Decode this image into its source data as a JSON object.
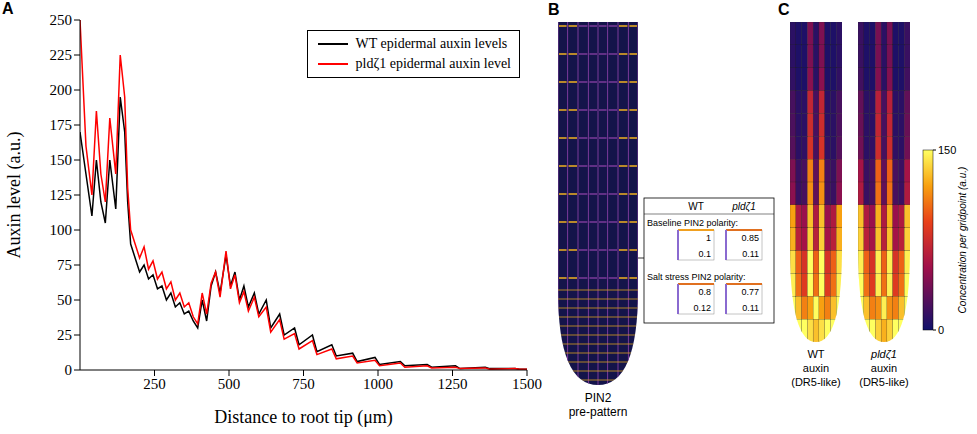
{
  "panel_labels": [
    "A",
    "B",
    "C"
  ],
  "chart_data": {
    "type": "line",
    "xlabel": "Distance to root tip (μm)",
    "ylabel": "Auxin level (a.u.)",
    "x": [
      0,
      20,
      40,
      55,
      70,
      85,
      100,
      120,
      135,
      150,
      160,
      170,
      185,
      200,
      215,
      230,
      245,
      260,
      275,
      290,
      305,
      320,
      335,
      350,
      365,
      380,
      395,
      410,
      425,
      440,
      455,
      470,
      490,
      505,
      520,
      535,
      550,
      565,
      585,
      600,
      625,
      640,
      670,
      685,
      720,
      735,
      780,
      795,
      845,
      860,
      915,
      930,
      990,
      1005,
      1075,
      1090,
      1165,
      1180,
      1260,
      1275,
      1360,
      1375,
      1460,
      1475,
      1500
    ],
    "series": [
      {
        "name": "WT epidermal auxin levels",
        "color": "#000000",
        "values": [
          170,
          140,
          110,
          150,
          120,
          105,
          150,
          115,
          195,
          170,
          120,
          90,
          80,
          70,
          75,
          65,
          68,
          58,
          60,
          50,
          55,
          45,
          48,
          40,
          42,
          35,
          30,
          50,
          35,
          60,
          70,
          55,
          82,
          60,
          70,
          50,
          60,
          45,
          55,
          40,
          50,
          30,
          40,
          25,
          30,
          18,
          25,
          13,
          18,
          10,
          12,
          6,
          9,
          4,
          6,
          3,
          4,
          2,
          3,
          1,
          2,
          1,
          1,
          0.5,
          0.5
        ]
      },
      {
        "name": "pldζ1 epidermal auxin level",
        "color": "#ff0000",
        "values": [
          250,
          160,
          125,
          185,
          140,
          120,
          180,
          140,
          225,
          195,
          130,
          100,
          90,
          80,
          88,
          72,
          78,
          65,
          70,
          58,
          63,
          50,
          55,
          45,
          48,
          38,
          33,
          55,
          40,
          62,
          70,
          52,
          85,
          58,
          68,
          48,
          56,
          42,
          52,
          38,
          45,
          27,
          36,
          22,
          26,
          15,
          21,
          11,
          15,
          8,
          10,
          5,
          7,
          3,
          5,
          2,
          3,
          1.5,
          2,
          1,
          1.5,
          0.5,
          1,
          0.5,
          0.5
        ]
      }
    ],
    "xlim": [
      0,
      1500
    ],
    "xticks": [
      250,
      500,
      750,
      1000,
      1250,
      1500
    ],
    "ylim": [
      0,
      250
    ],
    "yticks": [
      0,
      25,
      50,
      75,
      100,
      125,
      150,
      175,
      200,
      225,
      250
    ],
    "grid": false,
    "legend": "upper right"
  },
  "panel_b": {
    "caption": [
      "PIN2",
      "pre-pattern"
    ],
    "table": {
      "columns": [
        "WT",
        "pldζ1"
      ],
      "rows": [
        {
          "label": "Baseline PIN2 polarity:",
          "values": [
            [
              1,
              0.1
            ],
            [
              0.85,
              0.11
            ]
          ]
        },
        {
          "label": "Salt stress PIN2 polarity:",
          "values": [
            [
              0.8,
              0.12
            ],
            [
              0.77,
              0.11
            ]
          ]
        }
      ]
    }
  },
  "panel_c": {
    "heatmaps": [
      {
        "label": [
          "WT",
          "auxin",
          "(DR5-like)"
        ],
        "cells": [
          [
            10,
            5,
            5,
            40,
            10,
            40,
            5,
            5,
            10
          ],
          [
            10,
            5,
            5,
            40,
            10,
            40,
            5,
            5,
            10
          ],
          [
            12,
            5,
            5,
            45,
            10,
            45,
            5,
            5,
            12
          ],
          [
            20,
            10,
            10,
            70,
            20,
            70,
            10,
            10,
            20
          ],
          [
            22,
            10,
            10,
            75,
            20,
            75,
            10,
            10,
            22
          ],
          [
            25,
            10,
            12,
            80,
            20,
            80,
            12,
            10,
            25
          ],
          [
            40,
            15,
            20,
            110,
            30,
            110,
            20,
            15,
            40
          ],
          [
            45,
            15,
            20,
            115,
            30,
            115,
            20,
            15,
            45
          ],
          [
            120,
            60,
            50,
            130,
            60,
            130,
            50,
            60,
            120
          ],
          [
            125,
            65,
            55,
            135,
            65,
            135,
            55,
            65,
            125
          ],
          [
            140,
            100,
            80,
            150,
            100,
            150,
            80,
            100,
            140
          ],
          [
            145,
            105,
            85,
            150,
            105,
            150,
            85,
            105,
            145
          ],
          [
            150,
            130,
            110,
            120,
            150,
            120,
            110,
            130,
            150
          ],
          [
            60,
            150,
            150,
            140,
            130,
            140,
            150,
            150,
            60
          ]
        ]
      },
      {
        "label": [
          "pldζ1",
          "auxin",
          "(DR5-like)"
        ],
        "cells": [
          [
            15,
            5,
            5,
            38,
            10,
            38,
            5,
            5,
            15
          ],
          [
            15,
            5,
            5,
            38,
            10,
            38,
            5,
            5,
            15
          ],
          [
            18,
            5,
            5,
            42,
            10,
            42,
            5,
            5,
            18
          ],
          [
            30,
            10,
            10,
            65,
            20,
            65,
            10,
            10,
            30
          ],
          [
            32,
            10,
            10,
            70,
            20,
            70,
            10,
            10,
            32
          ],
          [
            35,
            10,
            12,
            75,
            20,
            75,
            12,
            10,
            35
          ],
          [
            55,
            15,
            20,
            100,
            30,
            100,
            20,
            15,
            55
          ],
          [
            60,
            15,
            20,
            105,
            30,
            105,
            20,
            15,
            60
          ],
          [
            130,
            60,
            50,
            125,
            60,
            125,
            50,
            60,
            130
          ],
          [
            135,
            65,
            55,
            130,
            65,
            130,
            55,
            65,
            135
          ],
          [
            145,
            100,
            80,
            145,
            100,
            145,
            80,
            100,
            145
          ],
          [
            150,
            105,
            85,
            145,
            105,
            145,
            85,
            105,
            150
          ],
          [
            150,
            130,
            110,
            115,
            145,
            115,
            110,
            130,
            150
          ],
          [
            65,
            150,
            150,
            135,
            125,
            135,
            150,
            150,
            65
          ]
        ]
      }
    ],
    "colorbar": {
      "title": "Concentration per gridpoint (a.u.)",
      "range": [
        0,
        150
      ],
      "ticks": [
        0,
        150
      ]
    }
  }
}
